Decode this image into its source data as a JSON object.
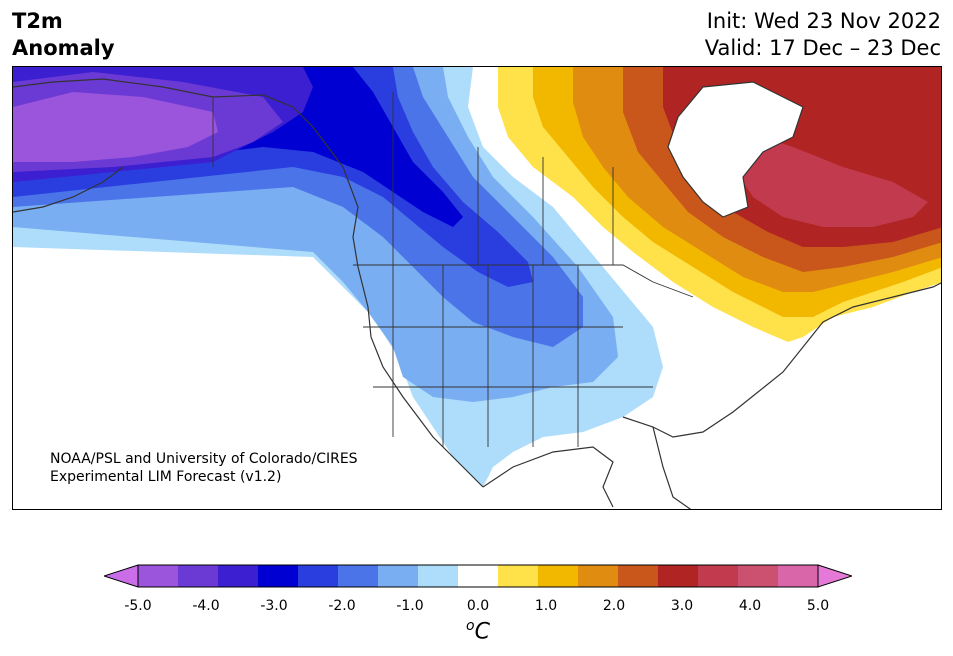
{
  "header": {
    "variable": "T2m",
    "field": "Anomaly",
    "init": "Init: Wed 23 Nov 2022",
    "valid": "Valid: 17 Dec – 23 Dec"
  },
  "credit": {
    "line1": "NOAA/PSL and University of Colorado/CIRES",
    "line2": "Experimental LIM Forecast (v1.2)"
  },
  "colorbar": {
    "unit_super": "o",
    "unit": "C",
    "min": -5.0,
    "max": 5.0,
    "step": 0.5,
    "extend": "both",
    "colors": [
      "#c96ee8",
      "#9a55dc",
      "#6b3ad4",
      "#3b1fd0",
      "#0000d2",
      "#2a3ee0",
      "#4a74e8",
      "#79aef2",
      "#aedcfb",
      "#ffffff",
      "#ffe14a",
      "#f2b800",
      "#e08c10",
      "#c9561a",
      "#b02424",
      "#c23a4e",
      "#cc5070",
      "#d966a8",
      "#e579d7"
    ],
    "ticks": [
      {
        "value": -5.0,
        "label": "-5.0"
      },
      {
        "value": -4.0,
        "label": "-4.0"
      },
      {
        "value": -3.0,
        "label": "-3.0"
      },
      {
        "value": -2.0,
        "label": "-2.0"
      },
      {
        "value": -1.0,
        "label": "-1.0"
      },
      {
        "value": 0.0,
        "label": "0.0"
      },
      {
        "value": 1.0,
        "label": "1.0"
      },
      {
        "value": 2.0,
        "label": "2.0"
      },
      {
        "value": 3.0,
        "label": "3.0"
      },
      {
        "value": 4.0,
        "label": "4.0"
      },
      {
        "value": 5.0,
        "label": "5.0"
      }
    ]
  }
}
